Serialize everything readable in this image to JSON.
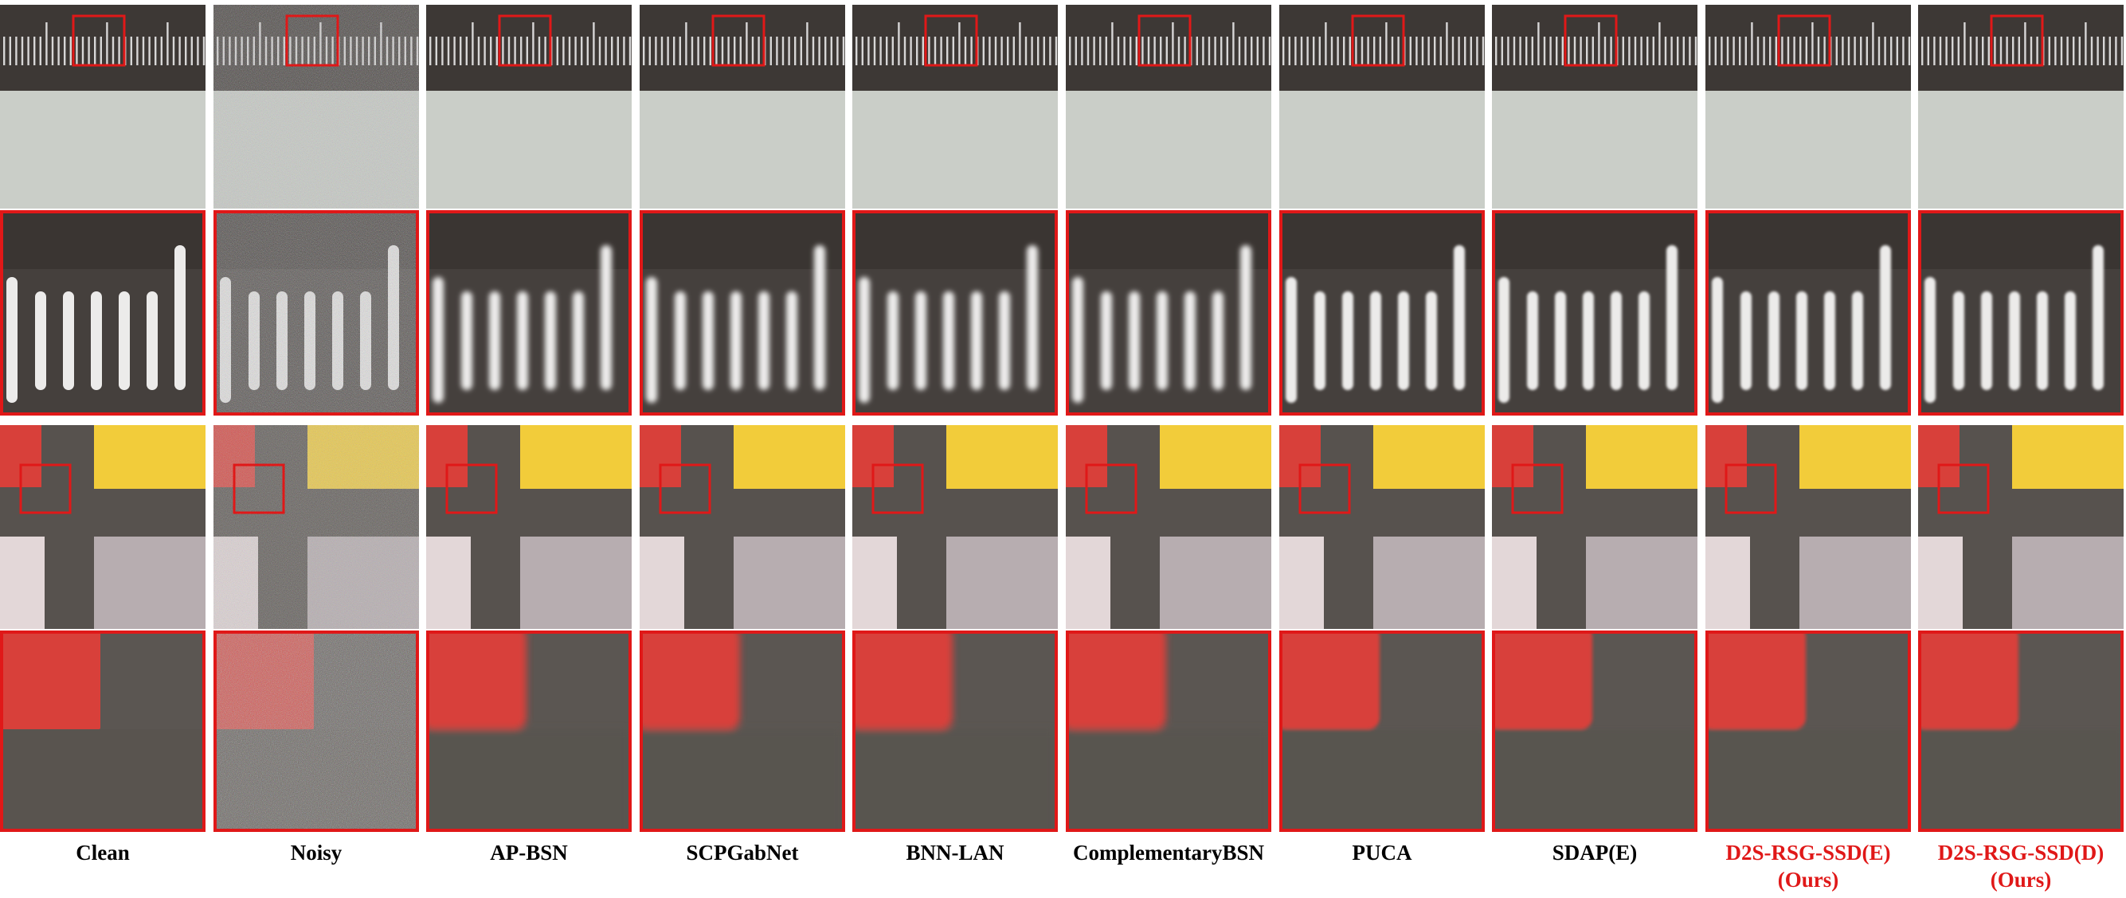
{
  "figure": {
    "columns": [
      {
        "label": "Clean",
        "sublabel": "",
        "ours": false,
        "variant": "clean"
      },
      {
        "label": "Noisy",
        "sublabel": "",
        "ours": false,
        "variant": "noisy"
      },
      {
        "label": "AP-BSN",
        "sublabel": "",
        "ours": false,
        "variant": "blur"
      },
      {
        "label": "SCPGabNet",
        "sublabel": "",
        "ours": false,
        "variant": "blur"
      },
      {
        "label": "BNN-LAN",
        "sublabel": "",
        "ours": false,
        "variant": "blur"
      },
      {
        "label": "ComplementaryBSN",
        "sublabel": "",
        "ours": false,
        "variant": "blur"
      },
      {
        "label": "PUCA",
        "sublabel": "",
        "ours": false,
        "variant": "sharp"
      },
      {
        "label": "SDAP(E)",
        "sublabel": "",
        "ours": false,
        "variant": "sharp"
      },
      {
        "label": "D2S-RSG-SSD(E)",
        "sublabel": "(Ours)",
        "ours": true,
        "variant": "sharp"
      },
      {
        "label": "D2S-RSG-SSD(D)",
        "sublabel": "(Ours)",
        "ours": true,
        "variant": "sharp"
      }
    ],
    "colors": {
      "highlight_box": "#e01818",
      "ours_text": "#e01818",
      "ruler_background": "#3d3835",
      "ruler_ticks": "#e8e8e8",
      "paper": "#c6cbc4",
      "dark_grey": "#57524e",
      "red_patch": "#d8403a",
      "yellow_patch": "#f2cc3a",
      "light_patch": "#e3d7d8",
      "mauve_patch": "#b7adb0"
    }
  }
}
